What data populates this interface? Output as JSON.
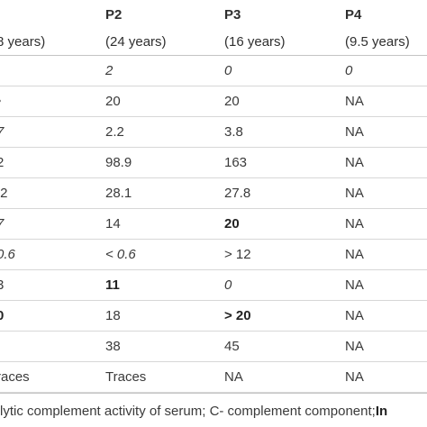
{
  "header": {
    "columns": [
      "",
      "P2",
      "P3",
      "P4"
    ],
    "ages": [
      "8 years)",
      "(24 years)",
      "(16 years)",
      "(9.5 years)"
    ]
  },
  "rows": [
    {
      "cells": [
        "",
        "2",
        "0",
        "0"
      ],
      "italic": [
        false,
        true,
        true,
        true
      ],
      "bold": [
        false,
        false,
        false,
        false
      ]
    },
    {
      "cells": [
        "•",
        "20",
        "20",
        "NA"
      ],
      "italic": [
        false,
        false,
        false,
        false
      ],
      "bold": [
        false,
        false,
        false,
        false
      ]
    },
    {
      "cells": [
        "7",
        "2.2",
        "3.8",
        "NA"
      ],
      "italic": [
        true,
        false,
        false,
        false
      ],
      "bold": [
        false,
        false,
        false,
        false
      ]
    },
    {
      "cells": "2|98.9|163|NA",
      "italic": [
        false,
        false,
        false,
        false
      ],
      "bold": [
        false,
        false,
        false,
        false
      ]
    },
    {
      "cells": [
        ".2",
        "28.1",
        "27.8",
        "NA"
      ],
      "italic": [
        false,
        false,
        false,
        false
      ],
      "bold": [
        false,
        false,
        false,
        false
      ]
    },
    {
      "cells": [
        "7",
        "14",
        "20",
        "NA"
      ],
      "italic": [
        true,
        false,
        false,
        false
      ],
      "bold": [
        false,
        false,
        true,
        false
      ]
    },
    {
      "cells": [
        "0.6",
        "< 0.6",
        "> 12",
        "NA"
      ],
      "italic": [
        true,
        true,
        false,
        false
      ],
      "bold": [
        false,
        false,
        false,
        false
      ]
    },
    {
      "cells": [
        "3",
        "11",
        "0",
        "NA"
      ],
      "italic": [
        false,
        false,
        true,
        false
      ],
      "bold": [
        false,
        true,
        false,
        false
      ]
    },
    {
      "cells": [
        "0",
        "18",
        "> 20",
        "NA"
      ],
      "italic": [
        false,
        false,
        false,
        false
      ],
      "bold": [
        true,
        false,
        true,
        false
      ]
    },
    {
      "cells": [
        "",
        "38",
        "45",
        "NA"
      ],
      "italic": [
        false,
        false,
        false,
        false
      ],
      "bold": [
        false,
        false,
        false,
        false
      ]
    },
    {
      "cells": [
        "races",
        "Traces",
        "NA",
        "NA"
      ],
      "italic": [
        false,
        false,
        false,
        false
      ],
      "bold": [
        false,
        false,
        false,
        false
      ]
    }
  ],
  "footnote": {
    "text": "lytic complement activity of serum; C- complement component; ",
    "bold_tail": "In"
  }
}
